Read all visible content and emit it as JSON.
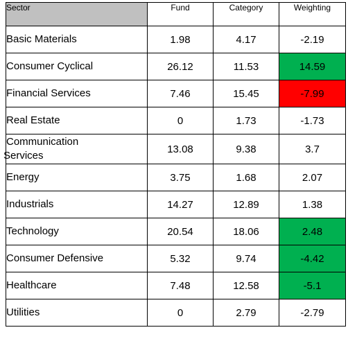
{
  "table": {
    "headers": [
      "Sector",
      "Fund",
      "Category",
      "Weighting"
    ],
    "rows": [
      {
        "sector": "Basic Materials",
        "fund": "1.98",
        "category": "4.17",
        "weighting": "-2.19",
        "highlight": ""
      },
      {
        "sector": "Consumer Cyclical",
        "fund": "26.12",
        "category": "11.53",
        "weighting": "14.59",
        "highlight": "green"
      },
      {
        "sector": "Financial Services",
        "fund": "7.46",
        "category": "15.45",
        "weighting": "-7.99",
        "highlight": "red"
      },
      {
        "sector": "Real Estate",
        "fund": "0",
        "category": "1.73",
        "weighting": "-1.73",
        "highlight": ""
      },
      {
        "sector": "Communication Services",
        "sector_line1": "Communication",
        "sector_line2": "Services",
        "fund": "13.08",
        "category": "9.38",
        "weighting": "3.7",
        "highlight": ""
      },
      {
        "sector": "Energy",
        "fund": "3.75",
        "category": "1.68",
        "weighting": "2.07",
        "highlight": ""
      },
      {
        "sector": "Industrials",
        "fund": "14.27",
        "category": "12.89",
        "weighting": "1.38",
        "highlight": ""
      },
      {
        "sector": "Technology",
        "fund": "20.54",
        "category": "18.06",
        "weighting": "2.48",
        "highlight": "green"
      },
      {
        "sector": "Consumer Defensive",
        "fund": "5.32",
        "category": "9.74",
        "weighting": "-4.42",
        "highlight": "green"
      },
      {
        "sector": "Healthcare",
        "fund": "7.48",
        "category": "12.58",
        "weighting": "-5.1",
        "highlight": "green"
      },
      {
        "sector": "Utilities",
        "fund": "0",
        "category": "2.79",
        "weighting": "-2.79",
        "highlight": ""
      }
    ]
  },
  "colors": {
    "header_bg": "#c0c0c0",
    "green": "#00b050",
    "red": "#ff0000"
  }
}
